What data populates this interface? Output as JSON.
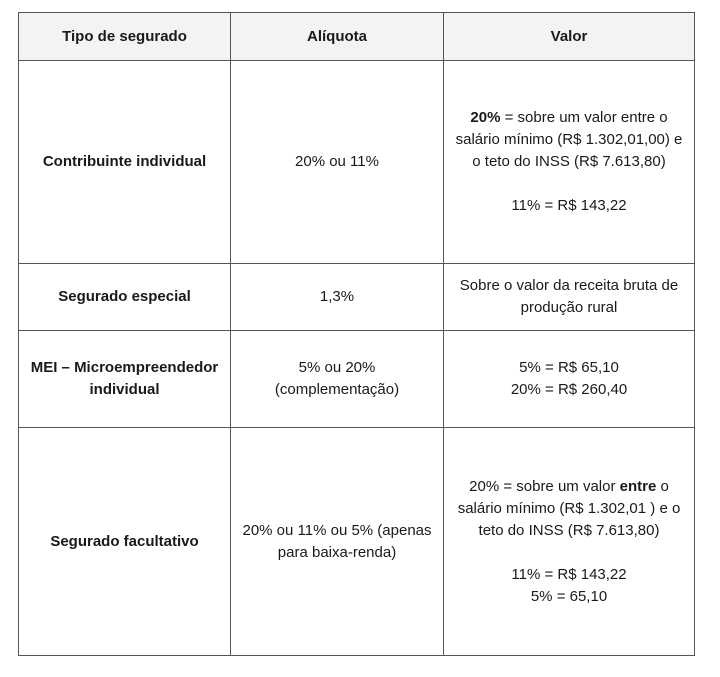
{
  "table": {
    "header": [
      "Tipo de segurado",
      "Alíquota",
      "Valor"
    ],
    "rows": [
      [
        "Contribuinte individual",
        "20% ou 11%",
        [
          [
            [
              {
                "text": "20%",
                "bold": true
              },
              {
                "text": " = sobre um valor entre o salário mínimo (R$ 1.302,01,00) e o teto do INSS (R$ 7.613,80)"
              }
            ]
          ],
          [
            "11% = R$ 143,22"
          ]
        ]
      ],
      [
        "Segurado especial",
        "1,3%",
        [
          [
            "Sobre o valor da receita bruta de produção rural"
          ]
        ]
      ],
      [
        "MEI – Microempreendedor individual",
        "5% ou 20% (complementação)",
        [
          [
            "5% = R$ 65,10",
            "20% = R$ 260,40"
          ]
        ]
      ],
      [
        "Segurado facultativo",
        "20% ou 11% ou 5% (apenas para baixa-renda)",
        [
          [
            [
              {
                "text": "20% = sobre um valor "
              },
              {
                "text": "entre",
                "bold": true
              },
              {
                "text": " o salário mínimo (R$ 1.302,01 ) e o teto do INSS (R$ 7.613,80)"
              }
            ]
          ],
          [
            "11% = R$ 143,22",
            "5% = 65,10"
          ]
        ]
      ]
    ]
  }
}
